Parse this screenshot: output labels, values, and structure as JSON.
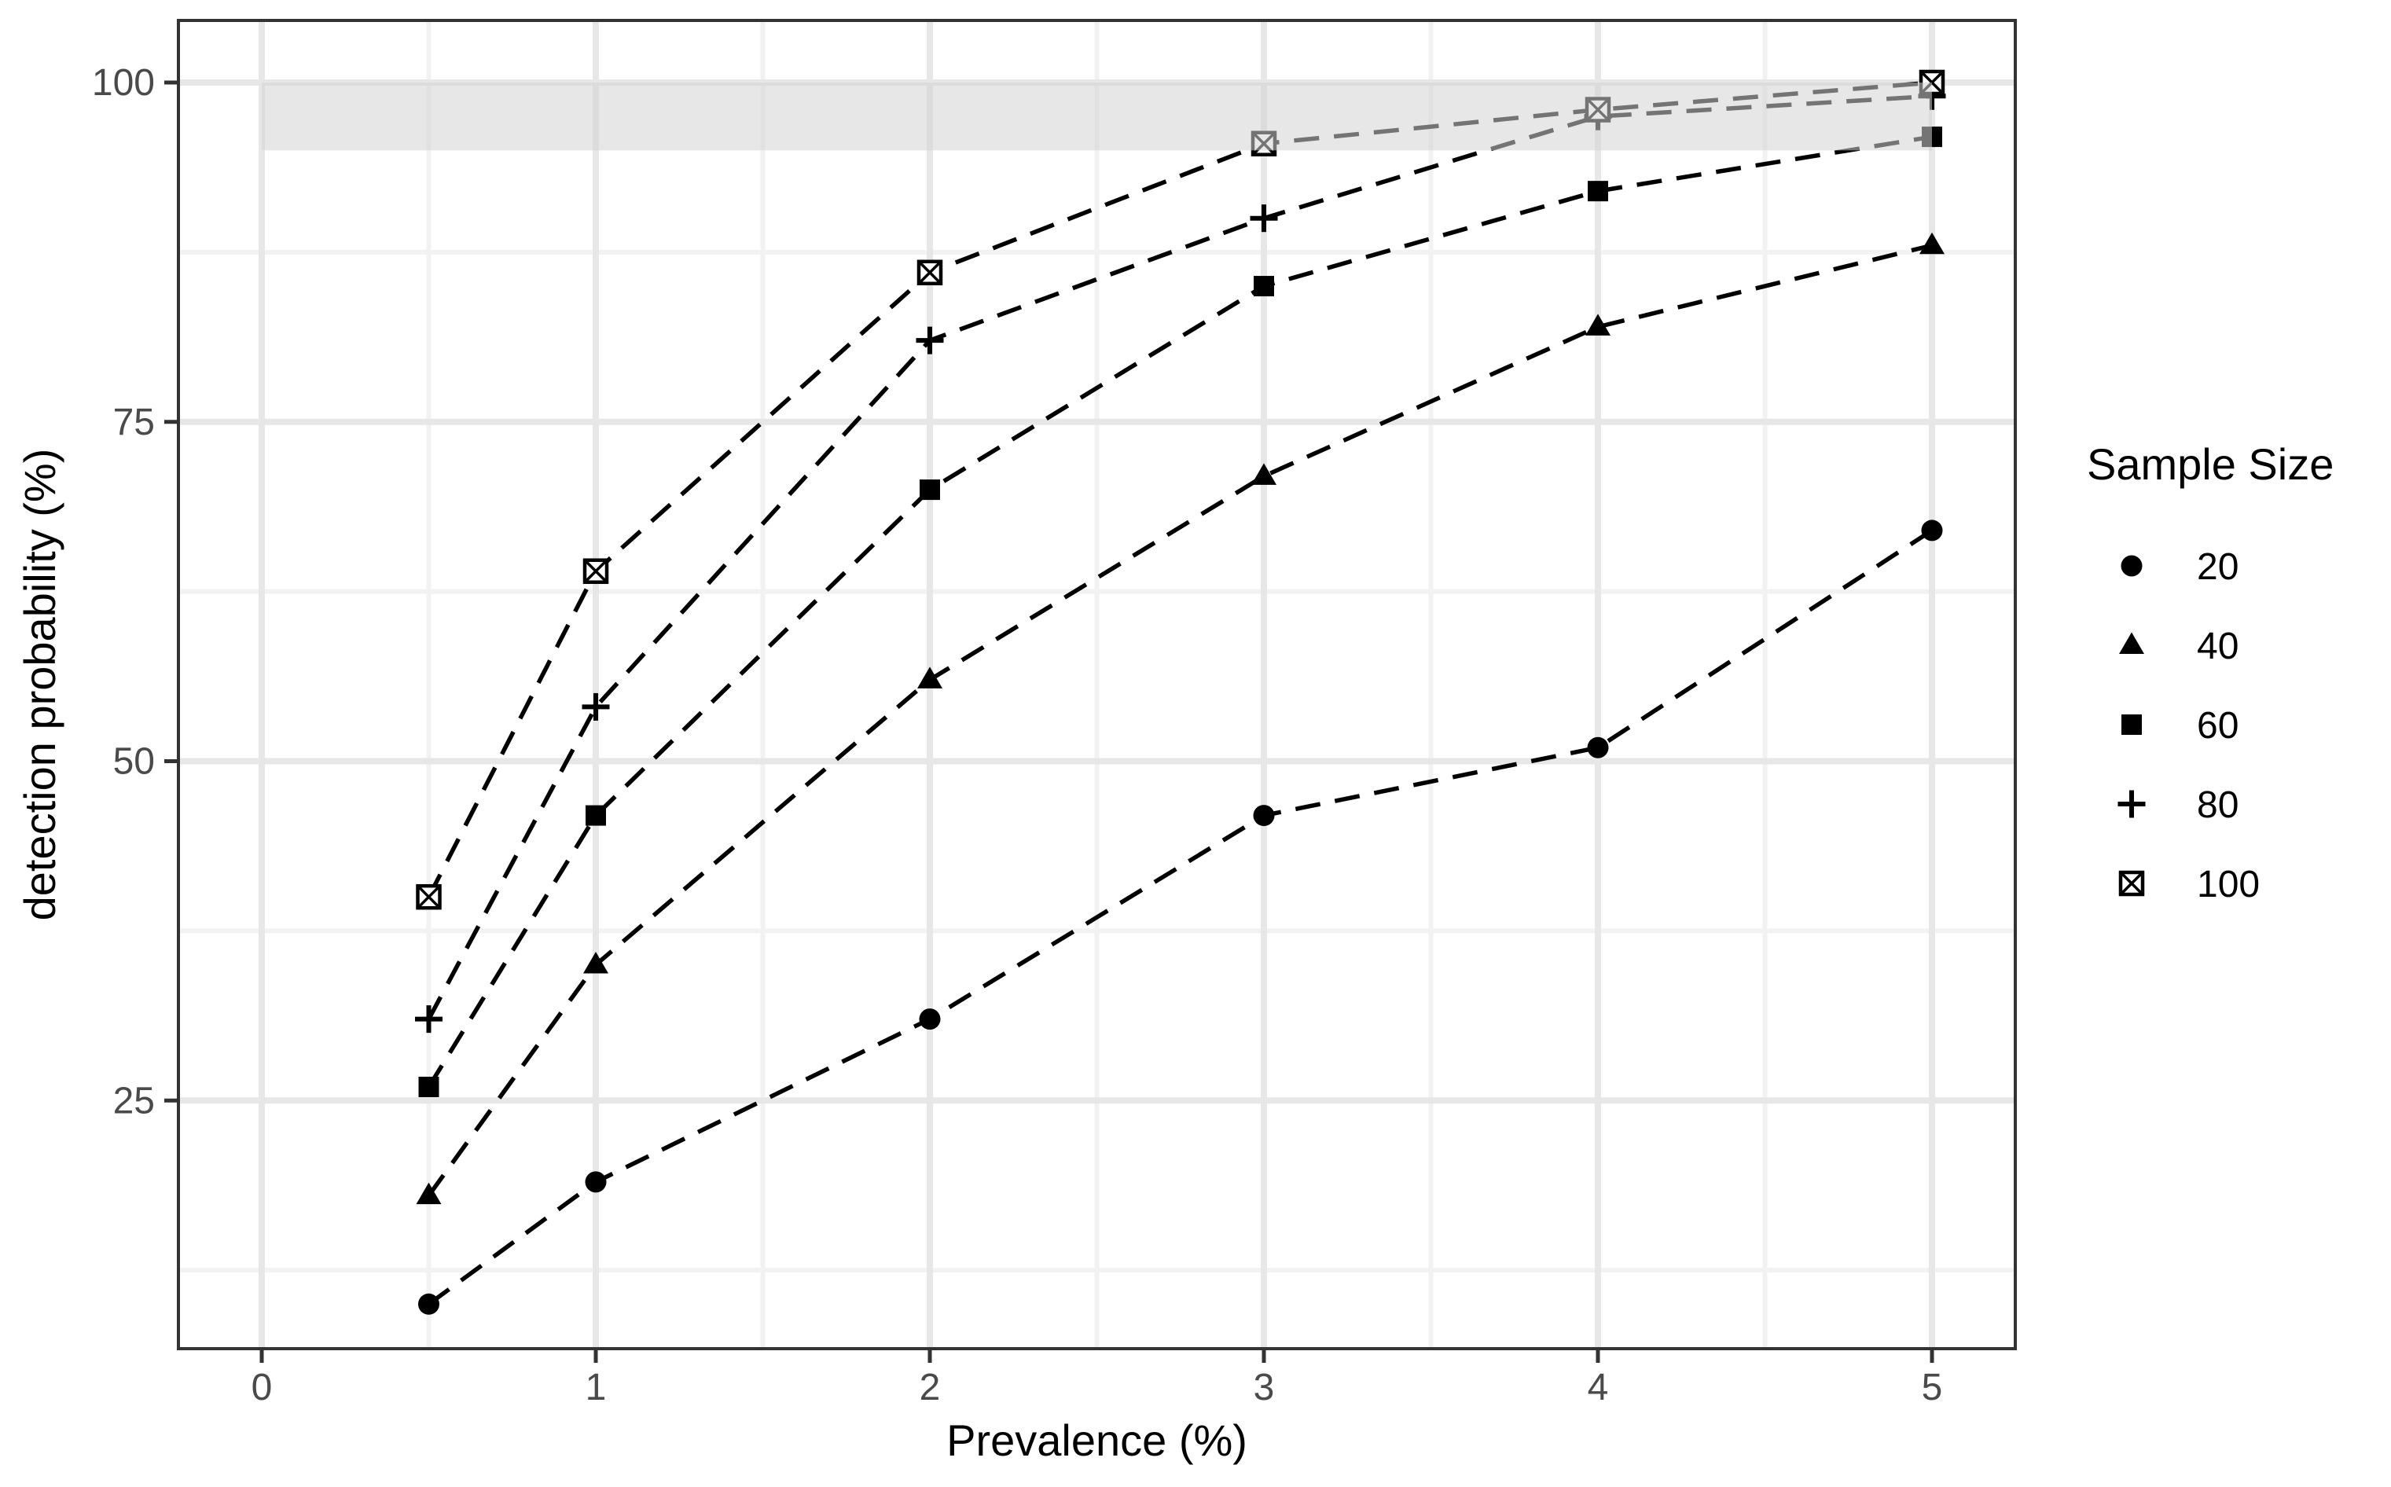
{
  "chart_data": {
    "type": "line",
    "title": "",
    "xlabel": "Prevalence (%)",
    "ylabel": "detection probability (%)",
    "x": [
      0.5,
      1,
      2,
      3,
      4,
      5
    ],
    "x_tick_values": [
      0,
      1,
      2,
      3,
      4,
      5
    ],
    "x_tick_labels": [
      "0",
      "1",
      "2",
      "3",
      "4",
      "5"
    ],
    "y_tick_values": [
      100,
      75,
      50,
      25
    ],
    "y_tick_labels": [
      "100",
      "75",
      "50",
      "25"
    ],
    "x_minor_ticks": [
      0.5,
      1.5,
      2.5,
      3.5,
      4.5
    ],
    "y_minor_ticks": [
      87.5,
      62.5,
      37.5,
      12.5
    ],
    "xlim": [
      -0.25,
      5.25
    ],
    "ylim": [
      6.7,
      104.6
    ],
    "grid": true,
    "line_style": "dashed",
    "line_color": "#000000",
    "series": [
      {
        "name": "20",
        "marker": "circle",
        "values": [
          10,
          19,
          31,
          46,
          51,
          67
        ]
      },
      {
        "name": "40",
        "marker": "triangle",
        "values": [
          18,
          35,
          56,
          71,
          82,
          88
        ]
      },
      {
        "name": "60",
        "marker": "square",
        "values": [
          26,
          46,
          70,
          85,
          92,
          96
        ]
      },
      {
        "name": "80",
        "marker": "plus",
        "values": [
          31,
          54,
          81,
          90,
          97.5,
          99
        ]
      },
      {
        "name": "100",
        "marker": "square-x",
        "values": [
          40,
          64,
          86,
          95.5,
          98,
          100
        ]
      }
    ],
    "band": {
      "x0": 0,
      "x1": 5,
      "y0": 95,
      "y1": 100,
      "fill": "rgba(211,211,211,0.55)"
    },
    "legend": {
      "title": "Sample Size",
      "position": "right",
      "labels": [
        "20",
        "40",
        "60",
        "80",
        "100"
      ]
    }
  },
  "colors": {
    "background": "#ffffff",
    "panel_background": "#ffffff",
    "panel_border": "#333333",
    "grid_major": "#e7e7e7",
    "grid_minor": "#f2f2f2",
    "tick_mark": "#333333",
    "tick_label": "#4a4a4a",
    "axis_title": "#000000",
    "series_color": "#000000"
  }
}
